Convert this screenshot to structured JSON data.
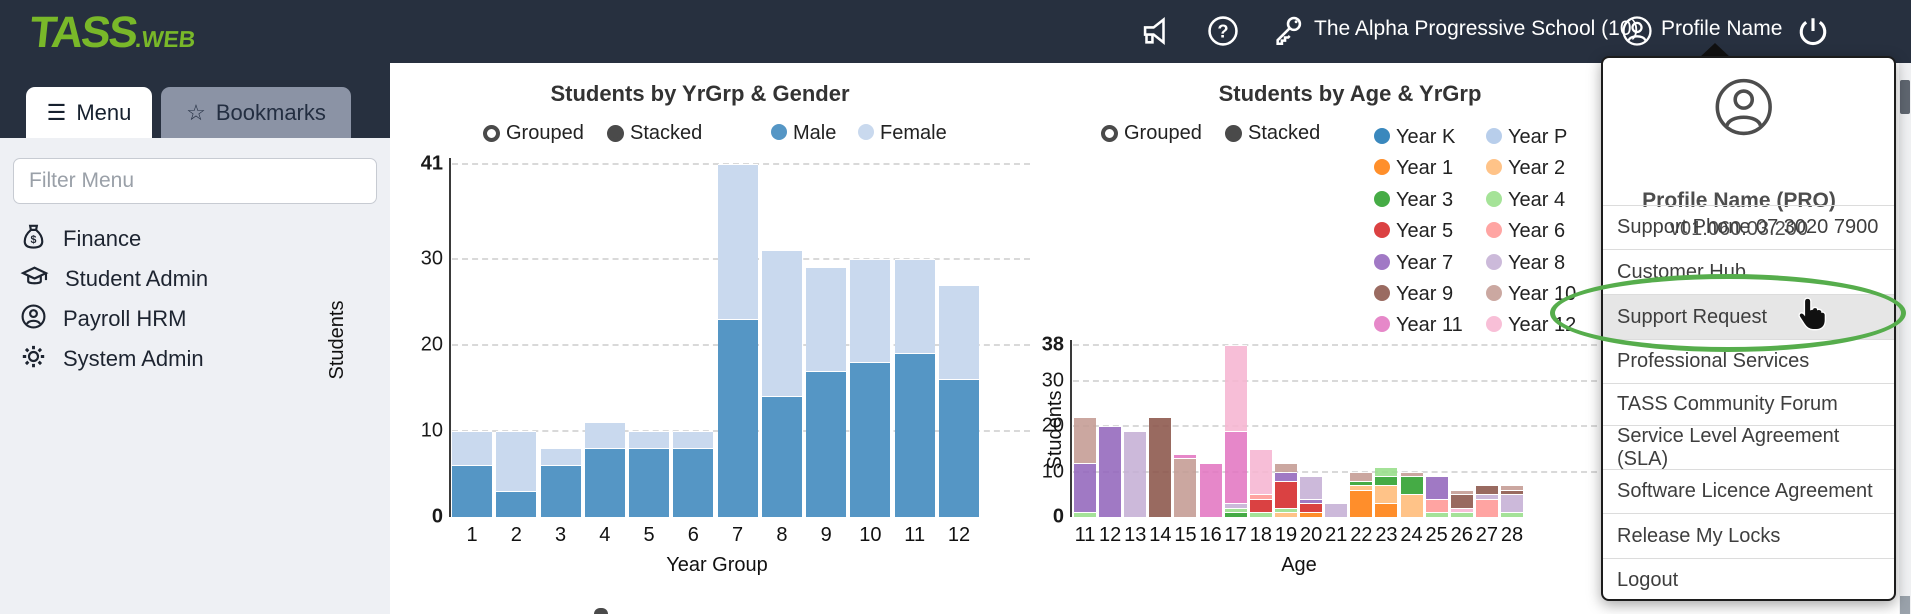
{
  "navbar": {
    "logo_main": "TASS",
    "logo_suffix": ".WEB",
    "school": "The Alpha Progressive School (10)",
    "profile": "Profile Name"
  },
  "sidebar": {
    "tabs": [
      {
        "label": "Menu"
      },
      {
        "label": "Bookmarks"
      }
    ],
    "filter_placeholder": "Filter Menu",
    "items": [
      {
        "label": "Finance",
        "icon": "money-bag-icon"
      },
      {
        "label": "Student Admin",
        "icon": "graduation-cap-icon"
      },
      {
        "label": "Payroll HRM",
        "icon": "person-badge-icon"
      },
      {
        "label": "System Admin",
        "icon": "gear-icon"
      }
    ]
  },
  "chart_data": [
    {
      "id": "yrgrp_gender",
      "type": "bar",
      "mode": "stacked",
      "title": "Students by YrGrp & Gender",
      "xlabel": "Year Group",
      "ylabel": "Students",
      "ylim": [
        0,
        41
      ],
      "yticks": [
        0,
        10,
        20,
        30,
        41
      ],
      "grid": true,
      "controls": [
        {
          "label": "Grouped",
          "selected": false
        },
        {
          "label": "Stacked",
          "selected": true
        }
      ],
      "categories": [
        "1",
        "2",
        "3",
        "4",
        "5",
        "6",
        "7",
        "8",
        "9",
        "10",
        "11",
        "12"
      ],
      "series": [
        {
          "name": "Male",
          "color": "#5596c5",
          "values": [
            6,
            3,
            6,
            8,
            8,
            8,
            23,
            14,
            17,
            18,
            19,
            16
          ]
        },
        {
          "name": "Female",
          "color": "#c9d9ee",
          "values": [
            4,
            7,
            2,
            3,
            2,
            2,
            18,
            17,
            12,
            12,
            11,
            11
          ]
        }
      ]
    },
    {
      "id": "age_yrgrp",
      "type": "bar",
      "mode": "stacked",
      "title": "Students by Age & YrGrp",
      "xlabel": "Age",
      "ylabel": "Students",
      "ylim": [
        0,
        38
      ],
      "yticks": [
        0,
        10,
        20,
        30,
        38
      ],
      "grid": true,
      "controls": [
        {
          "label": "Grouped",
          "selected": false
        },
        {
          "label": "Stacked",
          "selected": true
        }
      ],
      "categories": [
        "11",
        "12",
        "13",
        "14",
        "15",
        "16",
        "17",
        "18",
        "19",
        "20",
        "21",
        "22",
        "23",
        "24",
        "25",
        "26",
        "27",
        "28"
      ],
      "legend": [
        {
          "name": "Year K",
          "color": "#1f77b4"
        },
        {
          "name": "Year P",
          "color": "#aec7e8"
        },
        {
          "name": "Year 1",
          "color": "#ff7f0e"
        },
        {
          "name": "Year 2",
          "color": "#ffbb78"
        },
        {
          "name": "Year 3",
          "color": "#2ca02c"
        },
        {
          "name": "Year 4",
          "color": "#98df8a"
        },
        {
          "name": "Year 5",
          "color": "#d62728"
        },
        {
          "name": "Year 6",
          "color": "#ff9896"
        },
        {
          "name": "Year 7",
          "color": "#9467bd"
        },
        {
          "name": "Year 8",
          "color": "#c5b0d5"
        },
        {
          "name": "Year 9",
          "color": "#8c564b"
        },
        {
          "name": "Year 10",
          "color": "#c49c94"
        },
        {
          "name": "Year 11",
          "color": "#e377c2"
        },
        {
          "name": "Year 12",
          "color": "#f7b6d2"
        }
      ],
      "stacks": [
        {
          "category": "11",
          "segments": [
            [
              "Year 4",
              1
            ],
            [
              "Year 7",
              11
            ],
            [
              "Year 10",
              10
            ]
          ]
        },
        {
          "category": "12",
          "segments": [
            [
              "Year 7",
              20
            ]
          ]
        },
        {
          "category": "13",
          "segments": [
            [
              "Year 8",
              19
            ]
          ]
        },
        {
          "category": "14",
          "segments": [
            [
              "Year 9",
              22
            ]
          ]
        },
        {
          "category": "15",
          "segments": [
            [
              "Year 10",
              13
            ],
            [
              "Year 11",
              1
            ]
          ]
        },
        {
          "category": "16",
          "segments": [
            [
              "Year 11",
              12
            ]
          ]
        },
        {
          "category": "17",
          "segments": [
            [
              "Year 3",
              1
            ],
            [
              "Year 4",
              1
            ],
            [
              "Year 8",
              1
            ],
            [
              "Year 11",
              16
            ],
            [
              "Year 12",
              19
            ]
          ]
        },
        {
          "category": "18",
          "segments": [
            [
              "Year 4",
              1
            ],
            [
              "Year 5",
              3
            ],
            [
              "Year 6",
              1
            ],
            [
              "Year 12",
              10
            ]
          ]
        },
        {
          "category": "19",
          "segments": [
            [
              "Year 2",
              1
            ],
            [
              "Year 4",
              1
            ],
            [
              "Year 5",
              6
            ],
            [
              "Year 7",
              2
            ],
            [
              "Year 10",
              2
            ]
          ]
        },
        {
          "category": "20",
          "segments": [
            [
              "Year 1",
              1
            ],
            [
              "Year 5",
              2
            ],
            [
              "Year 7",
              1
            ],
            [
              "Year 8",
              5
            ]
          ]
        },
        {
          "category": "21",
          "segments": [
            [
              "Year 8",
              3
            ]
          ]
        },
        {
          "category": "22",
          "segments": [
            [
              "Year 1",
              6
            ],
            [
              "Year 2",
              1
            ],
            [
              "Year 3",
              1
            ],
            [
              "Year 10",
              2
            ]
          ]
        },
        {
          "category": "23",
          "segments": [
            [
              "Year 1",
              3
            ],
            [
              "Year 2",
              4
            ],
            [
              "Year 3",
              2
            ],
            [
              "Year 4",
              2
            ]
          ]
        },
        {
          "category": "24",
          "segments": [
            [
              "Year 2",
              5
            ],
            [
              "Year 3",
              4
            ],
            [
              "Year 10",
              1
            ]
          ]
        },
        {
          "category": "25",
          "segments": [
            [
              "Year 4",
              1
            ],
            [
              "Year 6",
              3
            ],
            [
              "Year 7",
              5
            ]
          ]
        },
        {
          "category": "26",
          "segments": [
            [
              "Year 4",
              1
            ],
            [
              "Year 12",
              1
            ],
            [
              "Year 9",
              3
            ],
            [
              "Year 10",
              1
            ]
          ]
        },
        {
          "category": "27",
          "segments": [
            [
              "Year 6",
              4
            ],
            [
              "Year 8",
              1
            ],
            [
              "Year 9",
              2
            ]
          ]
        },
        {
          "category": "28",
          "segments": [
            [
              "Year 4",
              1
            ],
            [
              "Year 8",
              4
            ],
            [
              "Year 9",
              1
            ],
            [
              "Year 10",
              1
            ]
          ]
        }
      ]
    }
  ],
  "dropdown": {
    "profile_name": "Profile Name (PRO)",
    "version": "v01.060.03.200",
    "items": [
      {
        "label": "Support Phone 07 3020 7900"
      },
      {
        "label": "Customer Hub"
      },
      {
        "label": "Support Request",
        "highlighted": true
      },
      {
        "label": "Professional Services"
      },
      {
        "label": "TASS Community Forum"
      },
      {
        "label": "Service Level Agreement (SLA)"
      },
      {
        "label": "Software Licence Agreement"
      },
      {
        "label": "Release My Locks"
      },
      {
        "label": "Logout"
      }
    ]
  }
}
